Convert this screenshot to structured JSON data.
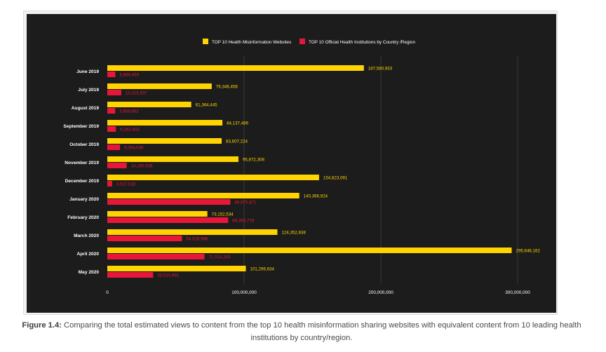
{
  "chart_data": {
    "type": "bar",
    "orientation": "horizontal",
    "title": "",
    "xlabel": "",
    "ylabel": "",
    "xlim": [
      0,
      310000000
    ],
    "xticks": [
      {
        "value": 0,
        "label": "0"
      },
      {
        "value": 100000000,
        "label": "100,000,000"
      },
      {
        "value": 200000000,
        "label": "200,000,000"
      },
      {
        "value": 300000000,
        "label": "300,000,000"
      }
    ],
    "grid": true,
    "legend_position": "top-center",
    "categories": [
      "June 2019",
      "July 2019",
      "August 2019",
      "September 2019",
      "October 2019",
      "November 2019",
      "December 2019",
      "January 2020",
      "February 2020",
      "March 2020",
      "April 2020",
      "May 2020"
    ],
    "series": [
      {
        "name": "TOP 10 Health Misinformation Websites",
        "color": "#ffd400",
        "values": [
          187580933,
          76346458,
          61364445,
          84137486,
          83607224,
          95872308,
          154823091,
          140366924,
          73152534,
          124352638,
          295646162,
          101296634
        ],
        "labels": [
          "187,580,933",
          "76,346,458",
          "61,364,445",
          "84,137,486",
          "83,607,224",
          "95,872,308",
          "154,823,091",
          "140,366,924",
          "73,152,534",
          "124,352,638",
          "295,646,162",
          "101,296,634"
        ]
      },
      {
        "name": "TOP 10 Official Health Institutions by Country /Region",
        "color": "#e8173a",
        "values": [
          5889459,
          10215937,
          5808662,
          6262403,
          9264036,
          14165936,
          3517518,
          89975871,
          88363778,
          54619988,
          71014243,
          33510891
        ],
        "labels": [
          "5,889,459",
          "10,215,937",
          "5,808,662",
          "6,262,403",
          "9,264,036",
          "14,165,936",
          "3,517,518",
          "89,975,871",
          "88,363,778",
          "54,619,988",
          "71,014,243",
          "33,510,891"
        ]
      }
    ]
  },
  "caption": {
    "label": "Figure 1.4:",
    "text": " Comparing the total estimated views to content from the top 10 health misinformation sharing websites with equivalent content from 10 leading health institutions by country/region."
  }
}
